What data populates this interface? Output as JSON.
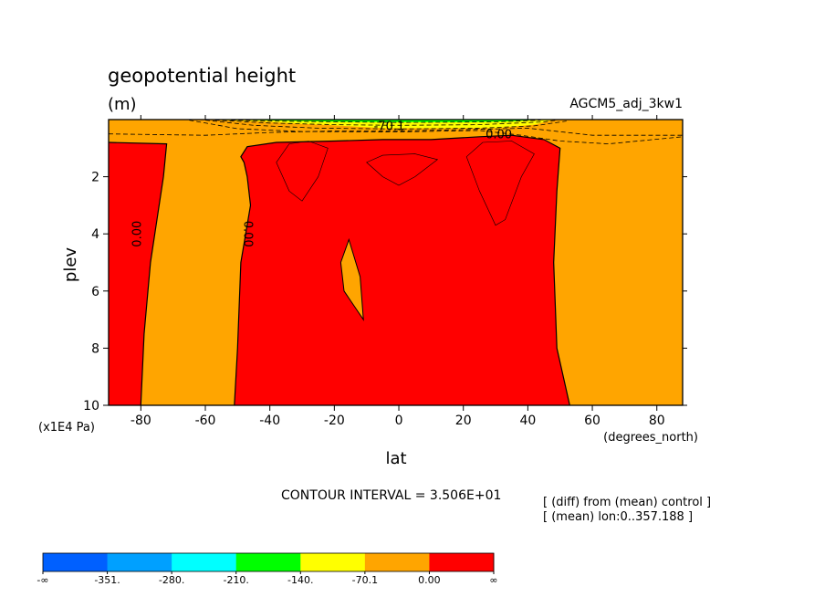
{
  "chart_data": {
    "type": "contour",
    "title": "geopotential height",
    "units": "(m)",
    "dataset": "AGCM5_adj_3kw1",
    "xlabel": "lat",
    "xunits": "(degrees_north)",
    "ylabel": "plev",
    "yunits": "(x1E4 Pa)",
    "xlim": [
      -90,
      88
    ],
    "ylim": [
      10,
      0
    ],
    "xticks": [
      -80,
      -60,
      -40,
      -20,
      0,
      20,
      40,
      60,
      80
    ],
    "yticks": [
      2,
      4,
      6,
      8,
      10
    ],
    "contour_interval": "CONTOUR INTERVAL = 3.506E+01",
    "info_lines": [
      "[ (diff) from (mean) control ]",
      "[ (mean) lon:0..357.188 ]"
    ],
    "contour_labels": [
      {
        "text": "-70.1",
        "lat": -3,
        "plev": 0.25,
        "rotate": 0
      },
      {
        "text": "0.00",
        "lat": 31,
        "plev": 0.55,
        "rotate": 0
      },
      {
        "text": "0.00",
        "lat": -81,
        "plev": 4.0,
        "rotate": -90
      },
      {
        "text": "0.00",
        "lat": -47,
        "plev": 4.0,
        "rotate": 90
      }
    ],
    "colorbar": {
      "labels": [
        "-∞",
        "-351.",
        "-280.",
        "-210.",
        "-140.",
        "-70.1",
        "0.00",
        "∞"
      ],
      "colors": [
        "#0060ff",
        "#00a0ff",
        "#00ffff",
        "#00ff00",
        "#ffff00",
        "#ffa500",
        "#ff0000"
      ]
    },
    "regions": [
      {
        "name": "orange-background",
        "color": "#ffa500",
        "points": [
          [
            -90,
            0
          ],
          [
            88,
            0
          ],
          [
            88,
            10
          ],
          [
            -90,
            10
          ]
        ]
      },
      {
        "name": "red-region-south",
        "color": "#ff0000",
        "points": [
          [
            -90,
            0.8
          ],
          [
            -72,
            0.85
          ],
          [
            -73,
            2
          ],
          [
            -77,
            5
          ],
          [
            -79,
            7.5
          ],
          [
            -80,
            10
          ],
          [
            -90,
            10
          ]
        ]
      },
      {
        "name": "red-region-main",
        "color": "#ff0000",
        "points": [
          [
            -49,
            1.3
          ],
          [
            -47,
            0.95
          ],
          [
            -38,
            0.8
          ],
          [
            -20,
            0.75
          ],
          [
            -5,
            0.7
          ],
          [
            10,
            0.7
          ],
          [
            25,
            0.6
          ],
          [
            35,
            0.55
          ],
          [
            45,
            0.7
          ],
          [
            50,
            1.0
          ],
          [
            49,
            2.5
          ],
          [
            48,
            5
          ],
          [
            49,
            8
          ],
          [
            53,
            10
          ],
          [
            -51,
            10
          ],
          [
            -50,
            8
          ],
          [
            -49,
            5
          ],
          [
            -46,
            3
          ],
          [
            -47,
            2
          ],
          [
            -48,
            1.5
          ]
        ]
      },
      {
        "name": "orange-inner-region",
        "color": "#ffa500",
        "points": [
          [
            -15.5,
            4.2
          ],
          [
            -12,
            5.5
          ],
          [
            -11,
            7.0
          ],
          [
            -17,
            6.0
          ],
          [
            -18,
            5.0
          ]
        ]
      },
      {
        "name": "yellow-top-band",
        "color": "#ffff00",
        "points": [
          [
            -61,
            0
          ],
          [
            48,
            0
          ],
          [
            42,
            0.18
          ],
          [
            30,
            0.3
          ],
          [
            10,
            0.3
          ],
          [
            -5,
            0.3
          ],
          [
            -20,
            0.2
          ],
          [
            -30,
            0.15
          ],
          [
            -40,
            0.08
          ]
        ]
      },
      {
        "name": "green-top-band",
        "color": "#00ff00",
        "points": [
          [
            -55,
            0
          ],
          [
            45,
            0
          ],
          [
            35,
            0.06
          ],
          [
            20,
            0.09
          ],
          [
            0,
            0.09
          ],
          [
            -20,
            0.07
          ],
          [
            -40,
            0.03
          ]
        ]
      }
    ],
    "contour_lines": [
      {
        "name": "red-orange-boundary-south",
        "width": 1.2,
        "points": [
          [
            -90,
            0.8
          ],
          [
            -72,
            0.85
          ],
          [
            -73,
            2
          ],
          [
            -77,
            5
          ],
          [
            -79,
            7.5
          ],
          [
            -80,
            10
          ]
        ]
      },
      {
        "name": "red-orange-boundary-main",
        "width": 1.2,
        "points": [
          [
            -51,
            10
          ],
          [
            -50,
            8
          ],
          [
            -49,
            5
          ],
          [
            -46,
            3
          ],
          [
            -47,
            2
          ],
          [
            -48,
            1.5
          ],
          [
            -49,
            1.3
          ],
          [
            -47,
            0.95
          ],
          [
            -38,
            0.8
          ],
          [
            -20,
            0.75
          ],
          [
            -5,
            0.7
          ],
          [
            10,
            0.7
          ],
          [
            25,
            0.6
          ],
          [
            35,
            0.55
          ],
          [
            45,
            0.7
          ],
          [
            50,
            1.0
          ],
          [
            49,
            2.5
          ],
          [
            48,
            5
          ],
          [
            49,
            8
          ],
          [
            53,
            10
          ]
        ]
      },
      {
        "name": "orange-inner-boundary",
        "width": 1.0,
        "closed": true,
        "points": [
          [
            -15.5,
            4.2
          ],
          [
            -12,
            5.5
          ],
          [
            -11,
            7.0
          ],
          [
            -17,
            6.0
          ],
          [
            -18,
            5.0
          ]
        ]
      },
      {
        "name": "closed-contour-west",
        "width": 0.6,
        "closed": true,
        "points": [
          [
            -38,
            1.5
          ],
          [
            -34,
            0.85
          ],
          [
            -28,
            0.75
          ],
          [
            -22,
            1.0
          ],
          [
            -25,
            2.0
          ],
          [
            -30,
            2.85
          ],
          [
            -34,
            2.5
          ]
        ]
      },
      {
        "name": "closed-contour-center",
        "width": 0.6,
        "closed": true,
        "points": [
          [
            -10,
            1.5
          ],
          [
            -5,
            1.25
          ],
          [
            5,
            1.2
          ],
          [
            12,
            1.4
          ],
          [
            5,
            2.0
          ],
          [
            0,
            2.3
          ],
          [
            -5,
            2.0
          ]
        ]
      },
      {
        "name": "closed-contour-east",
        "width": 0.6,
        "closed": true,
        "points": [
          [
            21,
            1.3
          ],
          [
            26,
            0.8
          ],
          [
            35,
            0.75
          ],
          [
            42,
            1.2
          ],
          [
            38,
            2.0
          ],
          [
            33,
            3.5
          ],
          [
            30,
            3.7
          ],
          [
            25,
            2.5
          ]
        ]
      },
      {
        "name": "dashed-contour-1",
        "width": 0.8,
        "dash": "5,3",
        "points": [
          [
            -90,
            0.5
          ],
          [
            -60,
            0.55
          ],
          [
            -40,
            0.45
          ],
          [
            -20,
            0.4
          ],
          [
            0,
            0.4
          ],
          [
            20,
            0.35
          ],
          [
            40,
            0.3
          ],
          [
            60,
            0.55
          ],
          [
            88,
            0.55
          ]
        ]
      },
      {
        "name": "dashed-contour-2",
        "width": 0.8,
        "dash": "5,3",
        "points": [
          [
            -65,
            0.02
          ],
          [
            -50,
            0.32
          ],
          [
            -30,
            0.42
          ],
          [
            0,
            0.43
          ],
          [
            25,
            0.38
          ],
          [
            38,
            0.55
          ],
          [
            50,
            0.75
          ],
          [
            65,
            0.85
          ],
          [
            88,
            0.6
          ]
        ]
      },
      {
        "name": "dashed-contour-3",
        "width": 0.8,
        "dash": "5,3",
        "points": [
          [
            -60,
            0.02
          ],
          [
            -45,
            0.2
          ],
          [
            -25,
            0.3
          ],
          [
            0,
            0.33
          ],
          [
            25,
            0.3
          ],
          [
            42,
            0.22
          ],
          [
            52,
            0.05
          ]
        ]
      },
      {
        "name": "dashed-contour-4",
        "width": 0.8,
        "dash": "5,3",
        "points": [
          [
            -57,
            0.02
          ],
          [
            -40,
            0.12
          ],
          [
            -20,
            0.18
          ],
          [
            0,
            0.2
          ],
          [
            25,
            0.18
          ],
          [
            45,
            0.08
          ],
          [
            49,
            0.02
          ]
        ]
      },
      {
        "name": "dashed-contour-5",
        "width": 0.8,
        "dash": "5,3",
        "points": [
          [
            -52,
            0.02
          ],
          [
            -35,
            0.06
          ],
          [
            0,
            0.1
          ],
          [
            30,
            0.08
          ],
          [
            44,
            0.02
          ]
        ]
      }
    ]
  }
}
